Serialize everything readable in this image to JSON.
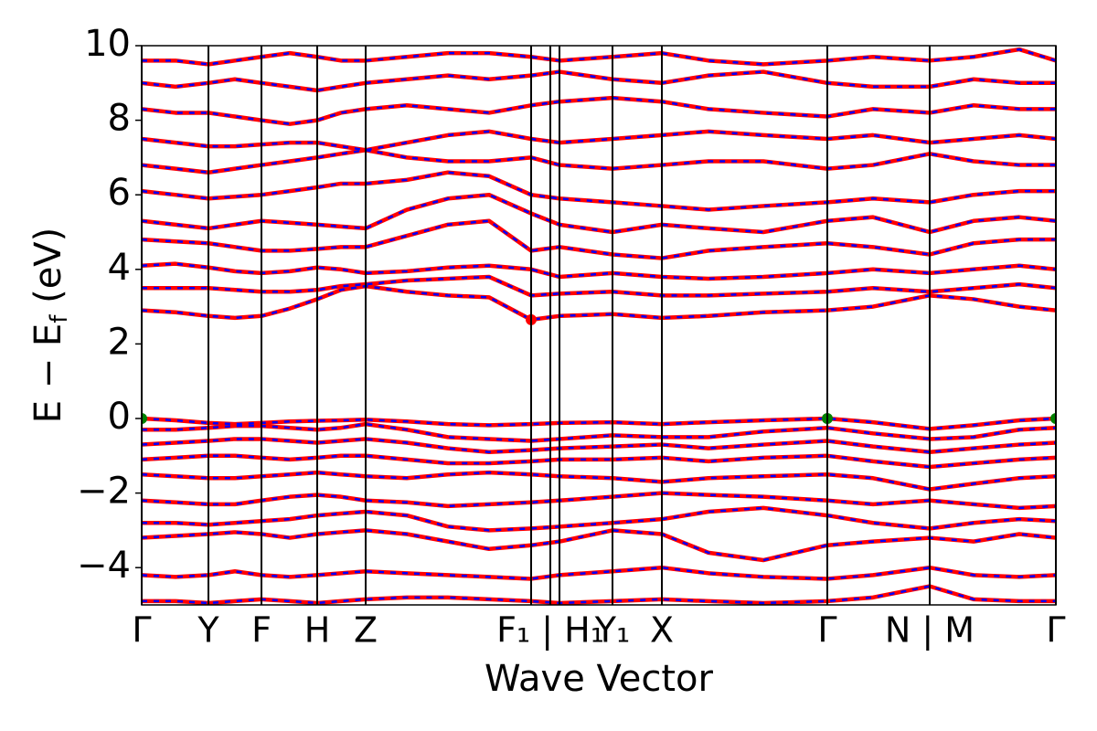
{
  "chart_data": {
    "type": "line",
    "xlabel": "Wave Vector",
    "ylabel": [
      "E − E",
      "f",
      " (eV)"
    ],
    "x": [
      0,
      37,
      73,
      102,
      131,
      162,
      192,
      218,
      245,
      290,
      335,
      380,
      426,
      457,
      515,
      569,
      620,
      680,
      750,
      800,
      862,
      910,
      960,
      1000
    ],
    "xlim": [
      0,
      1000
    ],
    "xticks": [
      {
        "value": 0,
        "label": "Γ"
      },
      {
        "value": 73,
        "label": "Y"
      },
      {
        "value": 131,
        "label": "F"
      },
      {
        "value": 192,
        "label": "H"
      },
      {
        "value": 245,
        "label": "Z"
      },
      {
        "value": 447,
        "label": "F₁ | H₁"
      },
      {
        "value": 515,
        "label": "Y₁"
      },
      {
        "value": 569,
        "label": "X"
      },
      {
        "value": 750,
        "label": "Γ"
      },
      {
        "value": 862,
        "label": "N | M"
      },
      {
        "value": 1000,
        "label": "Γ"
      }
    ],
    "xlines": [
      426,
      457
    ],
    "ylim": [
      -5,
      10
    ],
    "yticks": [
      {
        "value": -4,
        "label": "−4"
      },
      {
        "value": -2,
        "label": "−2"
      },
      0,
      2,
      4,
      6,
      8,
      10
    ],
    "colors": [
      "#ff0000",
      "#0000ff"
    ],
    "bands": [
      [
        0,
        -0.05,
        -0.12,
        -0.15,
        -0.12,
        -0.08,
        -0.06,
        -0.05,
        -0.03,
        -0.08,
        -0.15,
        -0.18,
        -0.15,
        -0.12,
        -0.1,
        -0.15,
        -0.1,
        -0.05,
        0,
        -0.1,
        -0.28,
        -0.18,
        -0.05,
        0
      ],
      [
        -0.3,
        -0.3,
        -0.25,
        -0.2,
        -0.2,
        -0.25,
        -0.3,
        -0.25,
        -0.15,
        -0.3,
        -0.5,
        -0.55,
        -0.6,
        -0.55,
        -0.45,
        -0.5,
        -0.5,
        -0.35,
        -0.25,
        -0.4,
        -0.55,
        -0.5,
        -0.3,
        -0.25
      ],
      [
        -0.7,
        -0.65,
        -0.6,
        -0.55,
        -0.55,
        -0.6,
        -0.65,
        -0.6,
        -0.55,
        -0.65,
        -0.8,
        -0.9,
        -0.85,
        -0.8,
        -0.75,
        -0.7,
        -0.8,
        -0.7,
        -0.6,
        -0.75,
        -0.9,
        -0.8,
        -0.7,
        -0.65
      ],
      [
        -1.1,
        -1.05,
        -1,
        -1,
        -1.05,
        -1.1,
        -1.05,
        -1,
        -1,
        -1.1,
        -1.2,
        -1.2,
        -1.15,
        -1.1,
        -1.1,
        -1.05,
        -1.15,
        -1.05,
        -1,
        -1.15,
        -1.3,
        -1.2,
        -1.1,
        -1.05
      ],
      [
        -1.5,
        -1.55,
        -1.6,
        -1.6,
        -1.55,
        -1.5,
        -1.45,
        -1.5,
        -1.55,
        -1.6,
        -1.5,
        -1.45,
        -1.5,
        -1.55,
        -1.6,
        -1.7,
        -1.6,
        -1.55,
        -1.5,
        -1.6,
        -1.9,
        -1.75,
        -1.6,
        -1.55
      ],
      [
        -2.2,
        -2.25,
        -2.3,
        -2.3,
        -2.2,
        -2.1,
        -2.05,
        -2.1,
        -2.2,
        -2.25,
        -2.35,
        -2.3,
        -2.25,
        -2.2,
        -2.1,
        -2,
        -2.05,
        -2.1,
        -2.2,
        -2.3,
        -2.2,
        -2.3,
        -2.4,
        -2.35
      ],
      [
        -2.8,
        -2.8,
        -2.85,
        -2.8,
        -2.75,
        -2.7,
        -2.6,
        -2.55,
        -2.5,
        -2.6,
        -2.9,
        -3,
        -2.95,
        -2.9,
        -2.8,
        -2.7,
        -2.5,
        -2.4,
        -2.6,
        -2.8,
        -2.95,
        -2.8,
        -2.7,
        -2.75
      ],
      [
        -3.2,
        -3.15,
        -3.1,
        -3.05,
        -3.1,
        -3.2,
        -3.1,
        -3.05,
        -3,
        -3.1,
        -3.3,
        -3.5,
        -3.4,
        -3.3,
        -3,
        -3.1,
        -3.6,
        -3.8,
        -3.4,
        -3.3,
        -3.2,
        -3.3,
        -3.1,
        -3.2
      ],
      [
        -4.2,
        -4.25,
        -4.2,
        -4.1,
        -4.2,
        -4.25,
        -4.2,
        -4.15,
        -4.1,
        -4.15,
        -4.2,
        -4.25,
        -4.3,
        -4.2,
        -4.1,
        -4,
        -4.15,
        -4.25,
        -4.3,
        -4.2,
        -4,
        -4.2,
        -4.25,
        -4.2
      ],
      [
        -4.9,
        -4.9,
        -4.95,
        -4.9,
        -4.85,
        -4.9,
        -4.95,
        -4.9,
        -4.85,
        -4.8,
        -4.8,
        -4.85,
        -4.9,
        -4.95,
        -4.9,
        -4.85,
        -4.9,
        -4.95,
        -4.9,
        -4.8,
        -4.5,
        -4.85,
        -4.9,
        -4.9
      ],
      [
        2.9,
        2.85,
        2.75,
        2.7,
        2.75,
        2.95,
        3.2,
        3.45,
        3.55,
        3.4,
        3.3,
        3.25,
        2.65,
        2.75,
        2.8,
        2.7,
        2.75,
        2.85,
        2.9,
        3,
        3.3,
        3.2,
        3,
        2.9
      ],
      [
        3.5,
        3.5,
        3.5,
        3.45,
        3.4,
        3.4,
        3.45,
        3.55,
        3.6,
        3.7,
        3.75,
        3.8,
        3.3,
        3.35,
        3.4,
        3.3,
        3.3,
        3.35,
        3.4,
        3.5,
        3.4,
        3.5,
        3.6,
        3.5
      ],
      [
        4.1,
        4.15,
        4.05,
        3.95,
        3.9,
        3.95,
        4.05,
        4,
        3.9,
        3.95,
        4.05,
        4.1,
        4,
        3.8,
        3.9,
        3.8,
        3.75,
        3.8,
        3.9,
        4,
        3.9,
        4,
        4.1,
        4
      ],
      [
        4.8,
        4.75,
        4.7,
        4.6,
        4.5,
        4.5,
        4.55,
        4.6,
        4.6,
        4.9,
        5.2,
        5.3,
        4.5,
        4.6,
        4.4,
        4.3,
        4.5,
        4.6,
        4.7,
        4.6,
        4.4,
        4.7,
        4.8,
        4.8
      ],
      [
        5.3,
        5.2,
        5.1,
        5.2,
        5.3,
        5.25,
        5.2,
        5.15,
        5.1,
        5.6,
        5.9,
        6,
        5.5,
        5.2,
        5,
        5.2,
        5.1,
        5,
        5.3,
        5.4,
        5,
        5.3,
        5.4,
        5.3
      ],
      [
        6.1,
        6,
        5.9,
        5.95,
        6,
        6.1,
        6.2,
        6.3,
        6.3,
        6.4,
        6.6,
        6.5,
        6,
        5.9,
        5.8,
        5.7,
        5.6,
        5.7,
        5.8,
        5.9,
        5.8,
        6,
        6.1,
        6.1
      ],
      [
        6.8,
        6.7,
        6.6,
        6.7,
        6.8,
        6.9,
        7,
        7.1,
        7.2,
        7,
        6.9,
        6.9,
        7,
        6.8,
        6.7,
        6.8,
        6.9,
        6.9,
        6.7,
        6.8,
        7.1,
        6.9,
        6.8,
        6.8
      ],
      [
        7.5,
        7.4,
        7.3,
        7.3,
        7.35,
        7.4,
        7.4,
        7.3,
        7.2,
        7.4,
        7.6,
        7.7,
        7.5,
        7.4,
        7.5,
        7.6,
        7.7,
        7.6,
        7.5,
        7.6,
        7.4,
        7.5,
        7.6,
        7.5
      ],
      [
        8.3,
        8.2,
        8.2,
        8.1,
        8,
        7.9,
        8,
        8.2,
        8.3,
        8.4,
        8.3,
        8.2,
        8.4,
        8.5,
        8.6,
        8.5,
        8.3,
        8.2,
        8.1,
        8.3,
        8.2,
        8.4,
        8.3,
        8.3
      ],
      [
        9,
        8.9,
        9,
        9.1,
        9,
        8.9,
        8.8,
        8.9,
        9,
        9.1,
        9.2,
        9.1,
        9.2,
        9.3,
        9.1,
        9,
        9.2,
        9.3,
        9,
        8.9,
        8.9,
        9.1,
        9,
        9
      ],
      [
        9.6,
        9.6,
        9.5,
        9.6,
        9.7,
        9.8,
        9.7,
        9.6,
        9.6,
        9.7,
        9.8,
        9.8,
        9.7,
        9.6,
        9.7,
        9.8,
        9.6,
        9.5,
        9.6,
        9.7,
        9.6,
        9.7,
        9.9,
        9.6
      ]
    ],
    "cbm": {
      "x": [
        426
      ],
      "y": [
        2.65
      ],
      "color": "#ff0000"
    },
    "vbm": {
      "x": [
        0,
        750,
        1000
      ],
      "y": [
        0,
        0,
        0
      ],
      "color": "#008000"
    }
  }
}
